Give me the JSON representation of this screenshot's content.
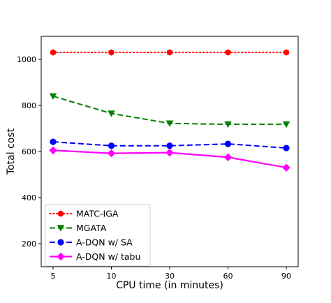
{
  "chart_data": {
    "type": "line",
    "categories": [
      "5",
      "10",
      "30",
      "60",
      "90"
    ],
    "xlabel": "CPU time (in minutes)",
    "ylabel": "Total cost",
    "ylim": [
      100,
      1100
    ],
    "yticks": [
      200,
      400,
      600,
      800,
      1000
    ],
    "grid": false,
    "legend_position": "bottom-left",
    "series": [
      {
        "name": "MATC-IGA",
        "values": [
          1030,
          1030,
          1030,
          1030,
          1030
        ],
        "color": "#ff0000",
        "line_style": "dotted",
        "marker": "hexagon"
      },
      {
        "name": "MGATA",
        "values": [
          840,
          765,
          722,
          718,
          718
        ],
        "color": "#008000",
        "line_style": "dashed",
        "marker": "triangle-down"
      },
      {
        "name": "A-DQN w/ SA",
        "values": [
          642,
          625,
          625,
          633,
          615
        ],
        "color": "#0000ff",
        "line_style": "dashed",
        "marker": "circle"
      },
      {
        "name": "A-DQN w/ tabu",
        "values": [
          605,
          592,
          595,
          575,
          530
        ],
        "color": "#ff00ff",
        "line_style": "solid",
        "marker": "diamond"
      }
    ]
  }
}
